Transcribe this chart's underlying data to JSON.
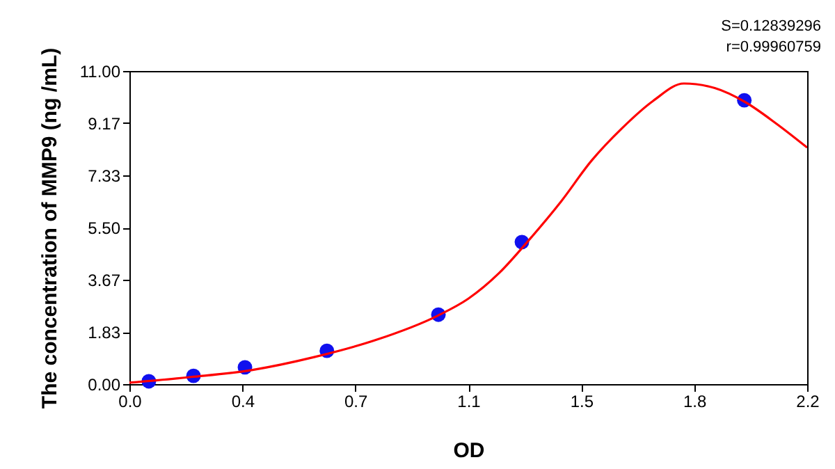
{
  "chart_data": {
    "type": "scatter",
    "xlabel": "OD",
    "ylabel": "The concentration of MMP9 (ng /mL)",
    "annotations": [
      "S=0.12839296",
      "r=0.99960759"
    ],
    "xlim": [
      0,
      2.2
    ],
    "xticks": [
      {
        "value": 0,
        "label": "0.0"
      },
      {
        "value": 0.3667,
        "label": "0.4"
      },
      {
        "value": 0.7333,
        "label": "0.7"
      },
      {
        "value": 1.1,
        "label": "1.1"
      },
      {
        "value": 1.4667,
        "label": "1.5"
      },
      {
        "value": 1.8333,
        "label": "1.8"
      },
      {
        "value": 2.2,
        "label": "2.2"
      }
    ],
    "ylim": [
      0,
      11
    ],
    "yticks": [
      {
        "value": 0,
        "label": "0.00"
      },
      {
        "value": 1.8333,
        "label": "1.83"
      },
      {
        "value": 3.6667,
        "label": "3.67"
      },
      {
        "value": 5.5,
        "label": "5.50"
      },
      {
        "value": 7.3333,
        "label": "7.33"
      },
      {
        "value": 9.1667,
        "label": "9.17"
      },
      {
        "value": 11,
        "label": "11.00"
      }
    ],
    "grid": false,
    "series": [
      {
        "type": "line",
        "color": "#ff0000",
        "x": [
          0,
          0.2,
          0.4,
          0.6,
          0.8,
          1.0,
          1.1,
          1.2,
          1.3,
          1.4,
          1.5,
          1.6,
          1.7,
          1.8,
          1.9,
          2.0,
          2.1,
          2.2
        ],
        "values": [
          0.05,
          0.25,
          0.5,
          0.95,
          1.55,
          2.4,
          3.0,
          3.9,
          5.1,
          6.4,
          7.85,
          9.0,
          9.95,
          10.56,
          10.4,
          9.9,
          9.15,
          8.31
        ]
      },
      {
        "marker": "circle",
        "color": "#1010ee",
        "x": [
          0.063,
          0.208,
          0.375,
          0.641,
          1.003,
          1.274,
          1.996
        ],
        "values": [
          0.1,
          0.29,
          0.59,
          1.17,
          2.44,
          4.99,
          9.97
        ]
      }
    ]
  }
}
